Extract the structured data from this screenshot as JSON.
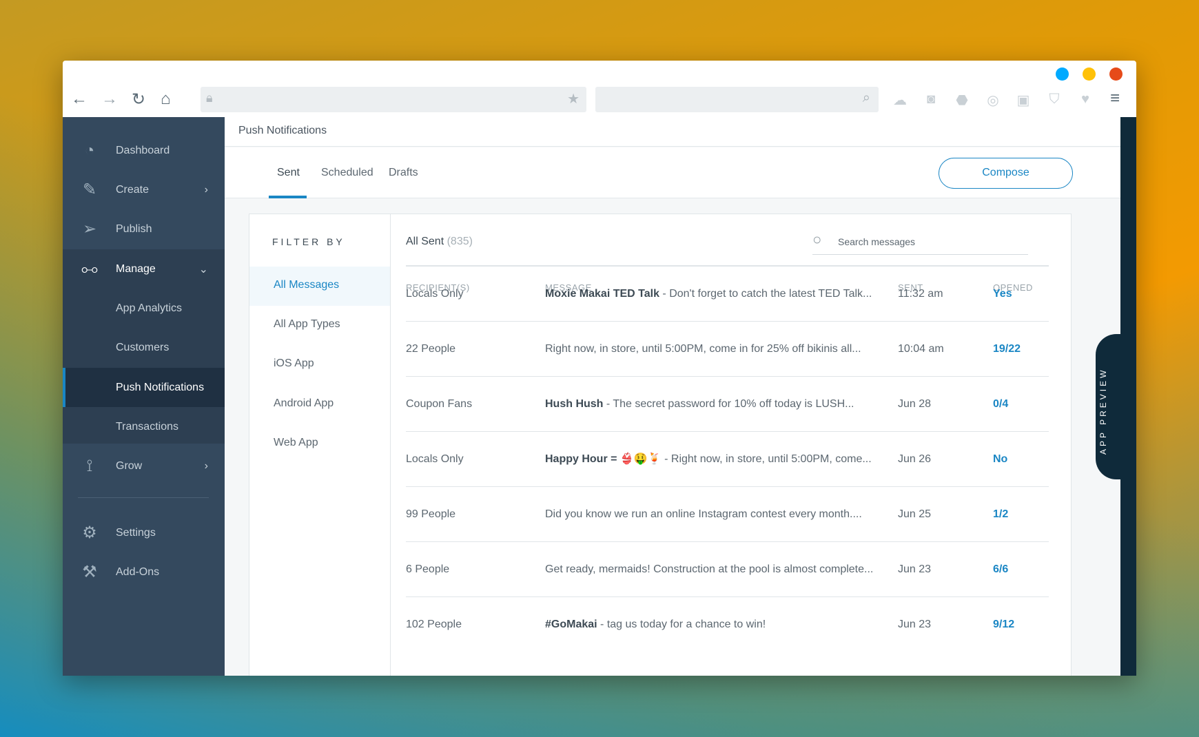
{
  "browser": {
    "controls": [
      "back-icon",
      "forward-icon",
      "reload-icon",
      "home-icon"
    ],
    "window_dots": {
      "blue": "#00aaff",
      "yellow": "#ffc107",
      "red": "#e64a19"
    },
    "toolbar_icons": [
      "cloud-upload-icon",
      "camera-icon",
      "alert-icon",
      "broadcast-icon",
      "briefcase-play-icon",
      "shield-check-icon",
      "heart-icon",
      "menu-icon"
    ]
  },
  "sidebar": {
    "items": [
      {
        "label": "Dashboard",
        "icon": "gauge-icon"
      },
      {
        "label": "Create",
        "icon": "pencil-icon"
      },
      {
        "label": "Publish",
        "icon": "paper-plane-icon"
      },
      {
        "label": "Manage",
        "icon": "sliders-icon"
      },
      {
        "label": "App Analytics"
      },
      {
        "label": "Customers"
      },
      {
        "label": "Push Notifications"
      },
      {
        "label": "Transactions"
      },
      {
        "label": "Grow",
        "icon": "graph-icon"
      },
      {
        "label": "Settings",
        "icon": "gear-icon"
      },
      {
        "label": "Add-Ons",
        "icon": "tools-icon"
      }
    ],
    "active": "Push Notifications"
  },
  "header": {
    "title": "Push Notifications"
  },
  "tabs": [
    {
      "label": "Sent"
    },
    {
      "label": "Scheduled"
    },
    {
      "label": "Drafts"
    }
  ],
  "compose_label": "Compose",
  "filter": {
    "title": "FILTER BY",
    "items": [
      "All Messages",
      "All App Types",
      "iOS App",
      "Android App",
      "Web App"
    ]
  },
  "list": {
    "title": "All Sent",
    "count": "(835)",
    "search_placeholder": "Search messages",
    "columns": [
      "RECIPIENT(S)",
      "MESSAGE",
      "SENT",
      "OPENED"
    ],
    "rows": [
      {
        "recipients": "Locals Only",
        "bold": "Moxie Makai TED Talk",
        "message": " - Don't forget to catch the latest TED Talk...",
        "sent": "11:32 am",
        "opened": "Yes"
      },
      {
        "recipients": "22 People",
        "bold": "",
        "message": "Right now, in store, until 5:00PM, come in for 25% off bikinis all...",
        "sent": "10:04 am",
        "opened": "19/22"
      },
      {
        "recipients": "Coupon Fans",
        "bold": "Hush Hush",
        "message": " - The secret password for 10% off today is LUSH...",
        "sent": "Jun 28",
        "opened": "0/4"
      },
      {
        "recipients": "Locals Only",
        "bold": "Happy Hour = 👙🤑🍹",
        "message": " - Right now, in store, until 5:00PM, come...",
        "sent": "Jun 26",
        "opened": "No"
      },
      {
        "recipients": "99 People",
        "bold": "",
        "message": "Did you know we run an online Instagram contest every month....",
        "sent": "Jun 25",
        "opened": "1/2"
      },
      {
        "recipients": "6 People",
        "bold": "",
        "message": "Get ready, mermaids! Construction at the pool is almost complete...",
        "sent": "Jun 23",
        "opened": "6/6"
      },
      {
        "recipients": "102 People",
        "bold": "#GoMakai",
        "message": " - tag us today for a chance to win!",
        "sent": "Jun 23",
        "opened": "9/12"
      }
    ]
  },
  "app_preview": "APP PREVIEW"
}
